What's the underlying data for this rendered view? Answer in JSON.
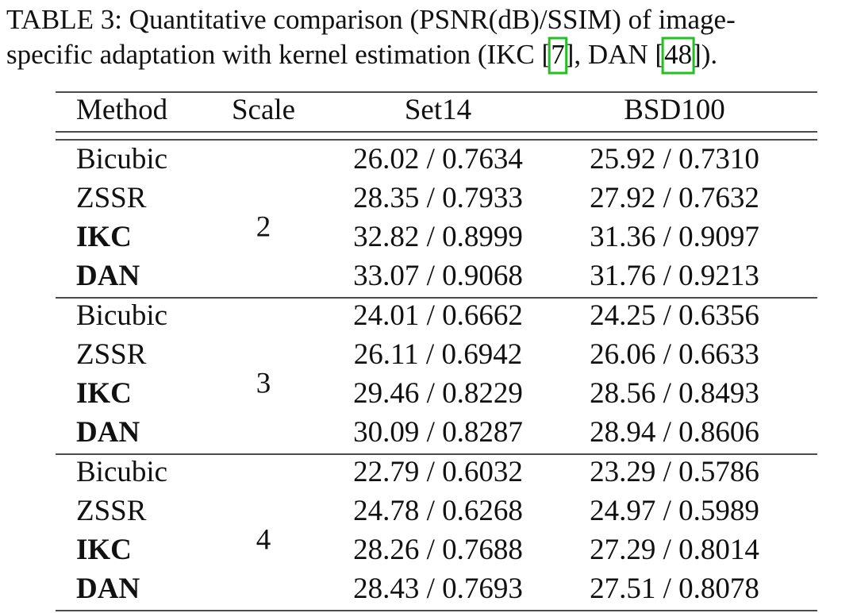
{
  "caption": {
    "line1": "TABLE 3: Quantitative comparison (PSNR(dB)/SSIM) of image-",
    "line2": [
      "specific adaptation with kernel estimation (IKC [",
      "7",
      "], DAN [",
      "48",
      "])."
    ]
  },
  "table": {
    "header": [
      "Method",
      "Scale",
      "Set14",
      "BSD100"
    ],
    "groups": [
      {
        "scale": "2",
        "rows": [
          {
            "method": "Bicubic",
            "bold": false,
            "set14": "26.02 / 0.7634",
            "bsd100": "25.92 / 0.7310"
          },
          {
            "method": "ZSSR",
            "bold": false,
            "set14": "28.35 / 0.7933",
            "bsd100": "27.92 / 0.7632"
          },
          {
            "method": "IKC",
            "bold": true,
            "set14": "32.82 / 0.8999",
            "bsd100": "31.36 / 0.9097"
          },
          {
            "method": "DAN",
            "bold": true,
            "set14": "33.07 / 0.9068",
            "bsd100": "31.76 / 0.9213"
          }
        ]
      },
      {
        "scale": "3",
        "rows": [
          {
            "method": "Bicubic",
            "bold": false,
            "set14": "24.01 / 0.6662",
            "bsd100": "24.25 / 0.6356"
          },
          {
            "method": "ZSSR",
            "bold": false,
            "set14": "26.11 / 0.6942",
            "bsd100": "26.06 / 0.6633"
          },
          {
            "method": "IKC",
            "bold": true,
            "set14": "29.46 / 0.8229",
            "bsd100": "28.56 / 0.8493"
          },
          {
            "method": "DAN",
            "bold": true,
            "set14": "30.09 / 0.8287",
            "bsd100": "28.94 / 0.8606"
          }
        ]
      },
      {
        "scale": "4",
        "rows": [
          {
            "method": "Bicubic",
            "bold": false,
            "set14": "22.79 / 0.6032",
            "bsd100": "23.29 / 0.5786"
          },
          {
            "method": "ZSSR",
            "bold": false,
            "set14": "24.78 / 0.6268",
            "bsd100": "24.97 / 0.5989"
          },
          {
            "method": "IKC",
            "bold": true,
            "set14": "28.26 / 0.7688",
            "bsd100": "27.29 / 0.8014"
          },
          {
            "method": "DAN",
            "bold": true,
            "set14": "28.43 / 0.7693",
            "bsd100": "27.51 / 0.8078"
          }
        ]
      }
    ]
  }
}
